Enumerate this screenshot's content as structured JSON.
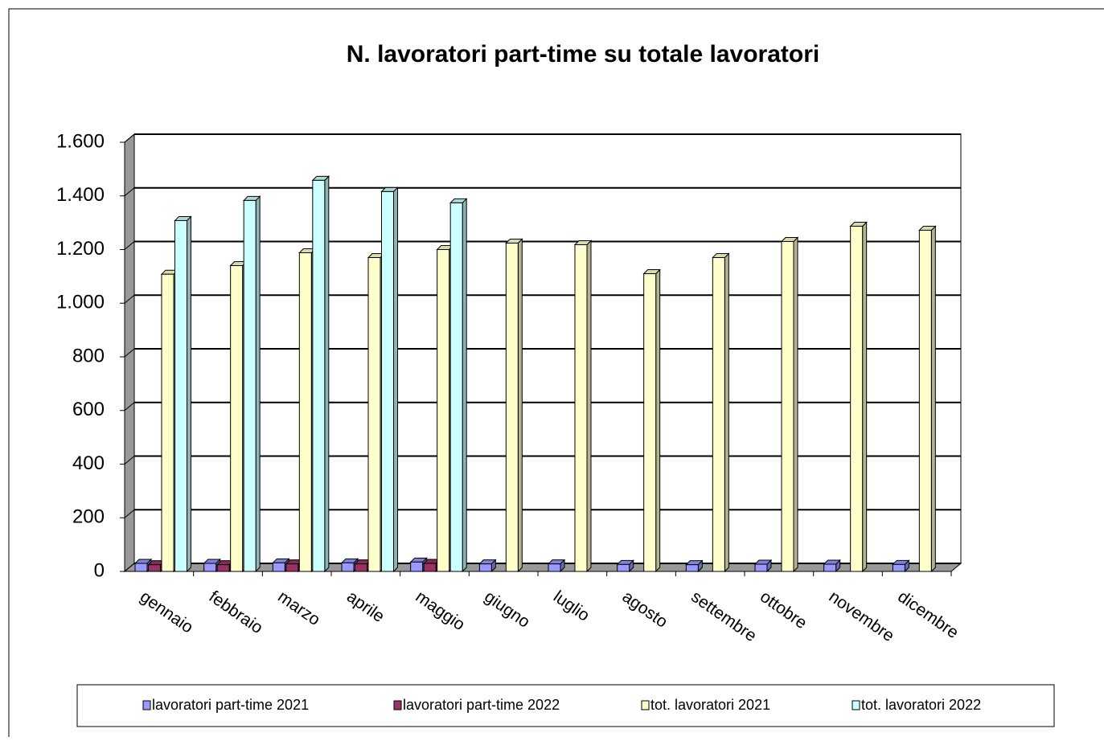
{
  "chart_data": {
    "type": "bar3d",
    "title": "N. lavoratori part-time su totale lavoratori",
    "categories": [
      "gennaio",
      "febbraio",
      "marzo",
      "aprile",
      "maggio",
      "giugno",
      "luglio",
      "agosto",
      "settembre",
      "ottobre",
      "novembre",
      "dicembre"
    ],
    "series": [
      {
        "name": "lavoratori part-time 2021",
        "color": "#9999ff",
        "values": [
          30,
          30,
          32,
          32,
          35,
          28,
          28,
          26,
          25,
          27,
          27,
          26
        ]
      },
      {
        "name": "lavoratori part-time 2022",
        "color": "#993366",
        "values": [
          25,
          25,
          28,
          28,
          30,
          null,
          null,
          null,
          null,
          null,
          null,
          null
        ]
      },
      {
        "name": "tot. lavoratori 2021",
        "color": "#ffffcc",
        "values": [
          1108,
          1140,
          1188,
          1170,
          1200,
          1224,
          1218,
          1110,
          1170,
          1230,
          1287,
          1272
        ]
      },
      {
        "name": "tot. lavoratori 2022",
        "color": "#ccffff",
        "values": [
          1308,
          1383,
          1458,
          1416,
          1374,
          null,
          null,
          null,
          null,
          null,
          null,
          null
        ]
      }
    ],
    "ylim": [
      0,
      1600
    ],
    "yticks": [
      0,
      200,
      400,
      600,
      800,
      {
        "value": 1000,
        "label": "1.000"
      },
      {
        "value": 1200,
        "label": "1.200"
      },
      {
        "value": 1400,
        "label": "1.400"
      },
      {
        "value": 1600,
        "label": "1.600"
      }
    ],
    "grid": true,
    "legend": "bottom"
  }
}
